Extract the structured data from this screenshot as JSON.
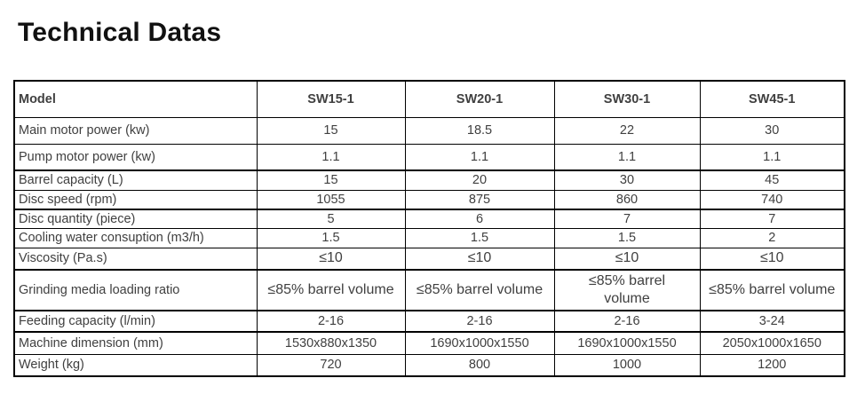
{
  "page": {
    "title": "Technical Datas"
  },
  "table": {
    "columns": [
      "Model",
      "SW15-1",
      "SW20-1",
      "SW30-1",
      "SW45-1"
    ],
    "rows": [
      {
        "label": "Main motor power (kw)",
        "values": [
          "15",
          "18.5",
          "22",
          "30"
        ]
      },
      {
        "label": "Pump motor power (kw)",
        "values": [
          "1.1",
          "1.1",
          "1.1",
          "1.1"
        ]
      },
      {
        "label": "Barrel capacity (L)",
        "values": [
          "15",
          "20",
          "30",
          "45"
        ]
      },
      {
        "label": "Disc speed (rpm)",
        "values": [
          "1055",
          "875",
          "860",
          "740"
        ]
      },
      {
        "label": "Disc quantity (piece)",
        "values": [
          "5",
          "6",
          "7",
          "7"
        ]
      },
      {
        "label": "Cooling water consuption (m3/h)",
        "values": [
          "1.5",
          "1.5",
          "1.5",
          "2"
        ]
      },
      {
        "label": "Viscosity (Pa.s)",
        "values": [
          "≤10",
          "≤10",
          "≤10",
          "≤10"
        ]
      },
      {
        "label": "Grinding media loading ratio",
        "values": [
          "≤85% barrel volume",
          "≤85% barrel volume",
          "≤85% barrel volume",
          "≤85% barrel volume"
        ]
      },
      {
        "label": "Feeding capacity (l/min)",
        "values": [
          "2-16",
          "2-16",
          "2-16",
          "3-24"
        ]
      },
      {
        "label": "Machine dimension (mm)",
        "values": [
          "1530x880x1350",
          "1690x1000x1550",
          "1690x1000x1550",
          "2050x1000x1650"
        ]
      },
      {
        "label": "Weight (kg)",
        "values": [
          "720",
          "800",
          "1000",
          "1200"
        ]
      }
    ]
  }
}
